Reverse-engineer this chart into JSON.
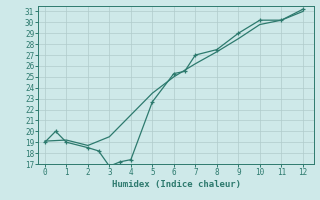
{
  "xlabel": "Humidex (Indice chaleur)",
  "background_color": "#cee9e9",
  "grid_color": "#b0cccc",
  "line_color": "#2d7a6e",
  "xlim": [
    -0.3,
    12.5
  ],
  "ylim": [
    17,
    31.5
  ],
  "yticks": [
    17,
    18,
    19,
    20,
    21,
    22,
    23,
    24,
    25,
    26,
    27,
    28,
    29,
    30,
    31
  ],
  "xticks": [
    0,
    1,
    2,
    3,
    4,
    5,
    6,
    7,
    8,
    9,
    10,
    11,
    12
  ],
  "line1_x": [
    0,
    0.5,
    1,
    2,
    2.5,
    3,
    3.5,
    4,
    5,
    6,
    6.5,
    7,
    8,
    9,
    10,
    11,
    12
  ],
  "line1_y": [
    19,
    20,
    19,
    18.5,
    18.2,
    16.8,
    17.2,
    17.4,
    22.7,
    25.3,
    25.5,
    27.0,
    27.5,
    29.0,
    30.2,
    30.2,
    31.2
  ],
  "line2_x": [
    0,
    1,
    2,
    3,
    4,
    5,
    6,
    7,
    8,
    9,
    10,
    11,
    12
  ],
  "line2_y": [
    19.1,
    19.2,
    18.7,
    19.5,
    21.5,
    23.5,
    25.0,
    26.2,
    27.3,
    28.5,
    29.8,
    30.2,
    31.0
  ]
}
